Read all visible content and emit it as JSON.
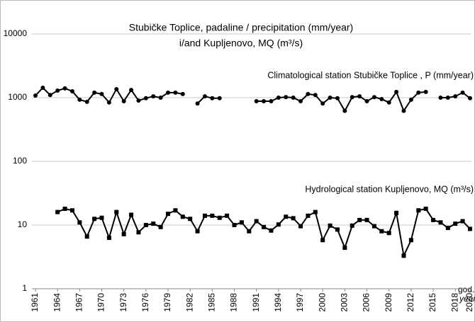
{
  "chart_data": {
    "type": "line",
    "title": [
      "Stubičke Toplice, padaline / precipitation (mm/year)",
      "i/and Kupljenovo, MQ (m³/s)"
    ],
    "xlabel": [
      "god.",
      "year"
    ],
    "x": [
      1961,
      1962,
      1963,
      1964,
      1965,
      1966,
      1967,
      1968,
      1969,
      1970,
      1971,
      1972,
      1973,
      1974,
      1975,
      1976,
      1977,
      1978,
      1979,
      1980,
      1981,
      1982,
      1983,
      1984,
      1985,
      1986,
      1987,
      1988,
      1989,
      1990,
      1991,
      1992,
      1993,
      1994,
      1995,
      1996,
      1997,
      1998,
      1999,
      2000,
      2001,
      2002,
      2003,
      2004,
      2005,
      2006,
      2007,
      2008,
      2009,
      2010,
      2011,
      2012,
      2013,
      2014,
      2015,
      2016,
      2017,
      2018,
      2019,
      2020
    ],
    "series": [
      {
        "name": "Climatological station Stubičke Toplice , P (mm/year)",
        "color": "#000000",
        "marker": "circle",
        "values": [
          1080,
          1430,
          1100,
          1290,
          1400,
          1260,
          930,
          860,
          1200,
          1140,
          840,
          1360,
          880,
          1320,
          900,
          980,
          1050,
          1000,
          1200,
          1200,
          1140,
          null,
          810,
          1050,
          980,
          980,
          null,
          null,
          null,
          null,
          880,
          880,
          880,
          1000,
          1020,
          1000,
          880,
          1140,
          1100,
          810,
          1000,
          980,
          620,
          1020,
          1050,
          880,
          1020,
          950,
          840,
          1230,
          620,
          930,
          1200,
          1230,
          null,
          1000,
          1000,
          1050,
          1200,
          980
        ]
      },
      {
        "name": "Hydrological station Kupljenovo, MQ (m³/s)",
        "color": "#000000",
        "marker": "square",
        "values": [
          null,
          null,
          null,
          16,
          18,
          17,
          11,
          6.6,
          12.5,
          13,
          6.3,
          16,
          7.2,
          14.5,
          7.7,
          10,
          10.5,
          9.3,
          15,
          17,
          13.5,
          12.5,
          8,
          14,
          14,
          13,
          14,
          10,
          11,
          8,
          11.5,
          9.3,
          8.2,
          10.2,
          13.5,
          12.8,
          9.6,
          14,
          16,
          5.8,
          9.8,
          8.5,
          4.4,
          9.8,
          12,
          12,
          9.6,
          8,
          7.5,
          15.5,
          3.3,
          5.8,
          17,
          18,
          12,
          11,
          9,
          10.5,
          11.5,
          8.7
        ]
      }
    ],
    "xlim": [
      1961,
      2020
    ],
    "xticks": [
      1961,
      1964,
      1967,
      1970,
      1973,
      1976,
      1979,
      1982,
      1985,
      1988,
      1991,
      1994,
      1997,
      2000,
      2003,
      2006,
      2009,
      2012,
      2015,
      2018,
      2020
    ],
    "ylim": [
      1,
      10000
    ],
    "yticks": [
      1,
      10,
      100,
      1000,
      10000
    ],
    "ylog": true,
    "grid": true
  }
}
